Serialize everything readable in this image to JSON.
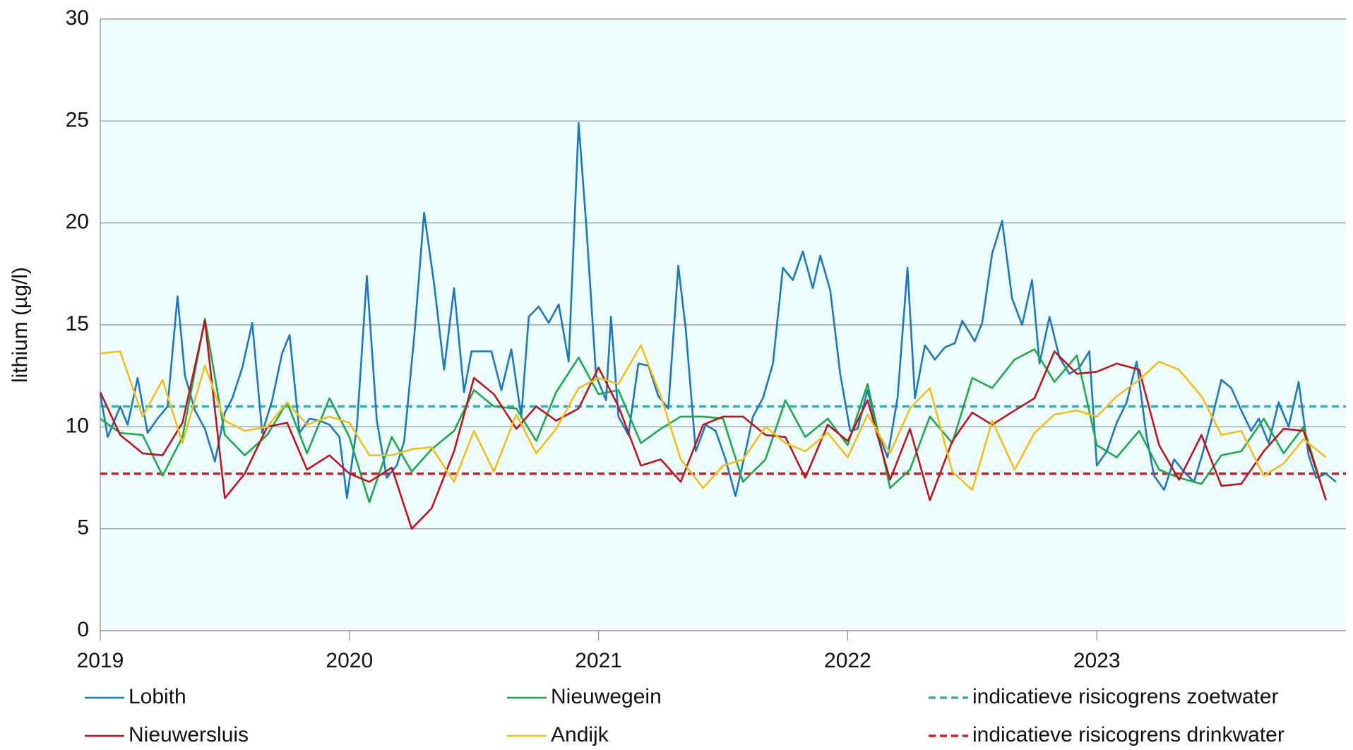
{
  "chart_data": {
    "type": "line",
    "ylabel": "lithium (µg/l)",
    "xlim": [
      2019,
      2024
    ],
    "xticks": [
      2019,
      2020,
      2021,
      2022,
      2023
    ],
    "ylim": [
      0,
      30
    ],
    "yticks": [
      0,
      5,
      10,
      15,
      20,
      25,
      30
    ],
    "grid": true,
    "legend": "bottom",
    "series": [
      {
        "name": "Lobith",
        "color": "#1f77c0",
        "x": [
          2019.0,
          2019.03,
          2019.08,
          2019.11,
          2019.15,
          2019.19,
          2019.23,
          2019.27,
          2019.31,
          2019.34,
          2019.38,
          2019.42,
          2019.46,
          2019.5,
          2019.53,
          2019.57,
          2019.61,
          2019.65,
          2019.69,
          2019.73,
          2019.76,
          2019.8,
          2019.84,
          2019.88,
          2019.92,
          2019.96,
          2019.99,
          2020.03,
          2020.07,
          2020.11,
          2020.15,
          2020.19,
          2020.22,
          2020.26,
          2020.3,
          2020.34,
          2020.38,
          2020.42,
          2020.46,
          2020.49,
          2020.53,
          2020.57,
          2020.61,
          2020.65,
          2020.69,
          2020.72,
          2020.76,
          2020.8,
          2020.84,
          2020.88,
          2020.92,
          2020.95,
          2020.99,
          2021.03,
          2021.05,
          2021.08,
          2021.12,
          2021.16,
          2021.2,
          2021.24,
          2021.28,
          2021.32,
          2021.35,
          2021.39,
          2021.43,
          2021.47,
          2021.51,
          2021.55,
          2021.59,
          2021.62,
          2021.66,
          2021.7,
          2021.74,
          2021.78,
          2021.82,
          2021.86,
          2021.89,
          2021.93,
          2021.97,
          2022.01,
          2022.04,
          2022.08,
          2022.12,
          2022.16,
          2022.2,
          2022.24,
          2022.27,
          2022.31,
          2022.35,
          2022.39,
          2022.43,
          2022.46,
          2022.51,
          2022.54,
          2022.58,
          2022.62,
          2022.66,
          2022.7,
          2022.74,
          2022.77,
          2022.81,
          2022.85,
          2022.89,
          2022.93,
          2022.97,
          2023.0,
          2023.04,
          2023.08,
          2023.12,
          2023.16,
          2023.2,
          2023.23,
          2023.27,
          2023.31,
          2023.35,
          2023.39,
          2023.42,
          2023.46,
          2023.5,
          2023.54,
          2023.58,
          2023.62,
          2023.65,
          2023.69,
          2023.73,
          2023.77,
          2023.81,
          2023.85,
          2023.88,
          2023.92,
          2023.96
        ],
        "values": [
          11.6,
          9.5,
          11.0,
          10.1,
          12.4,
          9.7,
          10.4,
          11.0,
          16.4,
          12.5,
          10.8,
          9.9,
          8.3,
          10.7,
          11.4,
          12.9,
          15.1,
          9.7,
          11.3,
          13.6,
          14.5,
          9.7,
          10.4,
          10.3,
          10.1,
          9.5,
          6.5,
          10.0,
          17.4,
          10.3,
          7.5,
          8.1,
          9.3,
          14.4,
          20.5,
          17.0,
          12.8,
          16.8,
          11.7,
          13.7,
          13.7,
          13.7,
          11.8,
          13.8,
          10.5,
          15.4,
          15.9,
          15.1,
          16.0,
          13.2,
          24.9,
          20.0,
          12.5,
          11.3,
          15.4,
          10.5,
          9.6,
          13.1,
          13.0,
          11.5,
          10.9,
          17.9,
          14.8,
          8.8,
          10.1,
          9.8,
          8.4,
          6.6,
          8.8,
          10.5,
          11.4,
          13.1,
          17.8,
          17.2,
          18.6,
          16.8,
          18.4,
          16.7,
          12.6,
          9.8,
          9.9,
          11.8,
          9.8,
          8.5,
          11.4,
          17.8,
          11.4,
          14.0,
          13.3,
          13.9,
          14.1,
          15.2,
          14.2,
          15.1,
          18.5,
          20.1,
          16.3,
          15.0,
          17.2,
          13.1,
          15.4,
          13.4,
          12.6,
          12.9,
          13.7,
          8.1,
          8.8,
          10.2,
          11.2,
          13.2,
          9.5,
          7.6,
          6.9,
          8.4,
          7.8,
          7.3,
          8.5,
          10.3,
          12.3,
          11.9,
          10.8,
          9.8,
          10.4,
          9.2,
          11.2,
          10.0,
          12.2,
          8.6,
          7.5,
          7.7,
          7.3
        ]
      },
      {
        "name": "Nieuwegein",
        "color": "#1ea84a",
        "x": [
          2019.0,
          2019.08,
          2019.17,
          2019.25,
          2019.33,
          2019.42,
          2019.5,
          2019.58,
          2019.67,
          2019.75,
          2019.83,
          2019.92,
          2020.0,
          2020.08,
          2020.17,
          2020.25,
          2020.33,
          2020.42,
          2020.5,
          2020.58,
          2020.67,
          2020.75,
          2020.83,
          2020.92,
          2021.0,
          2021.08,
          2021.17,
          2021.25,
          2021.33,
          2021.42,
          2021.5,
          2021.58,
          2021.67,
          2021.75,
          2021.83,
          2021.92,
          2022.0,
          2022.08,
          2022.17,
          2022.25,
          2022.33,
          2022.42,
          2022.5,
          2022.58,
          2022.67,
          2022.75,
          2022.83,
          2022.92,
          2023.0,
          2023.08,
          2023.17,
          2023.25,
          2023.33,
          2023.42,
          2023.5,
          2023.58,
          2023.67,
          2023.75,
          2023.83,
          2023.92
        ],
        "values": [
          10.4,
          9.7,
          9.6,
          7.6,
          9.5,
          15.3,
          9.6,
          8.6,
          9.6,
          11.2,
          8.7,
          11.4,
          9.5,
          6.3,
          9.5,
          7.8,
          8.9,
          9.8,
          11.8,
          11.0,
          10.9,
          9.3,
          11.7,
          13.4,
          11.6,
          11.8,
          9.2,
          9.9,
          10.5,
          10.5,
          10.4,
          7.3,
          8.4,
          11.3,
          9.5,
          10.4,
          9.1,
          12.1,
          7.0,
          7.9,
          10.5,
          9.2,
          12.4,
          11.9,
          13.3,
          13.8,
          12.2,
          13.5,
          9.1,
          8.5,
          9.8,
          7.9,
          7.5,
          7.2,
          8.6,
          8.8,
          10.4,
          8.7,
          10.0,
          6.4
        ]
      },
      {
        "name": "indicatieve risicogrens zoetwater",
        "color": "#3fa9b8",
        "dash": true,
        "x": [
          2019,
          2024
        ],
        "values": [
          11,
          11
        ]
      },
      {
        "name": "Nieuwersluis",
        "color": "#c0141c",
        "x": [
          2019.0,
          2019.08,
          2019.17,
          2019.25,
          2019.33,
          2019.42,
          2019.5,
          2019.58,
          2019.67,
          2019.75,
          2019.83,
          2019.92,
          2020.0,
          2020.08,
          2020.17,
          2020.25,
          2020.33,
          2020.42,
          2020.5,
          2020.58,
          2020.67,
          2020.75,
          2020.83,
          2020.92,
          2021.0,
          2021.08,
          2021.17,
          2021.25,
          2021.33,
          2021.42,
          2021.5,
          2021.58,
          2021.67,
          2021.75,
          2021.83,
          2021.92,
          2022.0,
          2022.08,
          2022.17,
          2022.25,
          2022.33,
          2022.42,
          2022.5,
          2022.58,
          2022.67,
          2022.75,
          2022.83,
          2022.92,
          2023.0,
          2023.08,
          2023.17,
          2023.25,
          2023.33,
          2023.42,
          2023.5,
          2023.58,
          2023.67,
          2023.75,
          2023.83,
          2023.92
        ],
        "values": [
          11.7,
          9.6,
          8.7,
          8.6,
          10.2,
          15.2,
          6.5,
          7.7,
          10.0,
          10.2,
          7.9,
          8.6,
          7.7,
          7.3,
          8.0,
          5.0,
          6.0,
          8.8,
          12.4,
          11.6,
          9.9,
          11.0,
          10.3,
          10.9,
          12.9,
          11.0,
          8.1,
          8.4,
          7.3,
          10.1,
          10.5,
          10.5,
          9.6,
          9.5,
          7.5,
          10.1,
          9.3,
          11.3,
          7.4,
          9.9,
          6.4,
          9.3,
          10.7,
          10.1,
          10.8,
          11.4,
          13.7,
          12.6,
          12.7,
          13.1,
          12.8,
          9.1,
          7.4,
          9.6,
          7.1,
          7.2,
          8.8,
          9.9,
          9.8,
          6.4
        ]
      },
      {
        "name": "Andijk",
        "color": "#f5bd1a",
        "x": [
          2019.0,
          2019.08,
          2019.17,
          2019.25,
          2019.33,
          2019.42,
          2019.5,
          2019.58,
          2019.67,
          2019.75,
          2019.83,
          2019.92,
          2020.0,
          2020.08,
          2020.17,
          2020.25,
          2020.33,
          2020.42,
          2020.5,
          2020.58,
          2020.67,
          2020.75,
          2020.83,
          2020.92,
          2021.0,
          2021.08,
          2021.17,
          2021.25,
          2021.33,
          2021.42,
          2021.5,
          2021.58,
          2021.67,
          2021.75,
          2021.83,
          2021.92,
          2022.0,
          2022.08,
          2022.17,
          2022.25,
          2022.33,
          2022.42,
          2022.5,
          2022.58,
          2022.67,
          2022.75,
          2022.83,
          2022.92,
          2023.0,
          2023.08,
          2023.17,
          2023.25,
          2023.33,
          2023.42,
          2023.5,
          2023.58,
          2023.67,
          2023.75,
          2023.83,
          2023.92
        ],
        "values": [
          13.6,
          13.7,
          10.5,
          12.3,
          9.2,
          13.0,
          10.3,
          9.8,
          10.0,
          11.2,
          10.1,
          10.5,
          10.2,
          8.6,
          8.6,
          8.9,
          9.0,
          7.3,
          9.8,
          7.8,
          10.6,
          8.7,
          9.9,
          11.9,
          12.4,
          12.1,
          14.0,
          11.5,
          8.4,
          7.0,
          8.1,
          8.4,
          10.0,
          9.2,
          8.8,
          9.7,
          8.5,
          10.6,
          8.7,
          10.9,
          11.9,
          7.8,
          6.9,
          10.3,
          7.9,
          9.7,
          10.6,
          10.8,
          10.5,
          11.5,
          12.3,
          13.2,
          12.8,
          11.5,
          9.6,
          9.8,
          7.6,
          8.2,
          9.4,
          8.5
        ]
      },
      {
        "name": "indicatieve risicogrens drinkwater",
        "color": "#e8161b",
        "dash": true,
        "x": [
          2019,
          2024
        ],
        "values": [
          7.7,
          7.7
        ]
      }
    ]
  }
}
